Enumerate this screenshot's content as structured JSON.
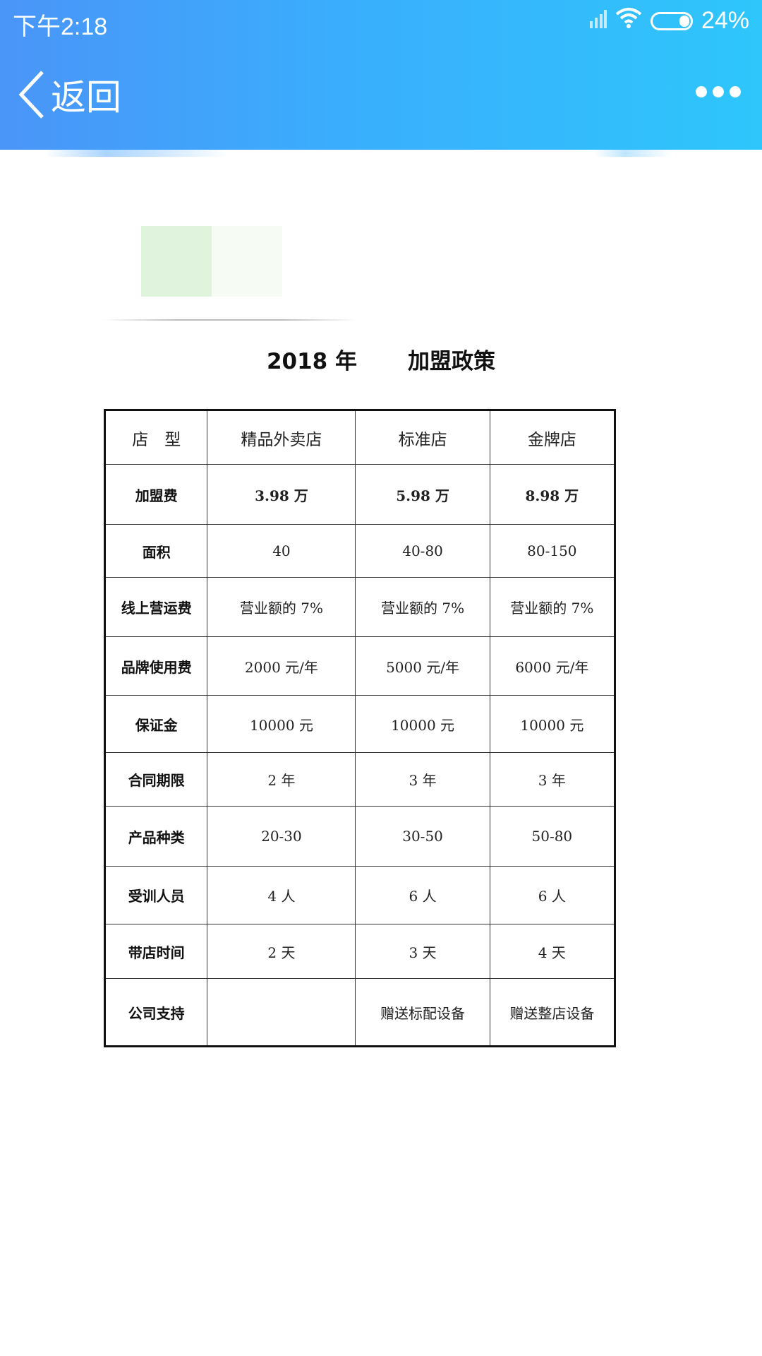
{
  "status_bar": {
    "time": "下午2:18",
    "battery": "24%"
  },
  "nav": {
    "back_label": "返回"
  },
  "document": {
    "title_year": "2018 年",
    "title_text": "加盟政策",
    "table": {
      "headers": [
        "店　型",
        "精品外卖店",
        "标准店",
        "金牌店"
      ],
      "rows": [
        [
          "加盟费",
          "3.98 万",
          "5.98 万",
          "8.98 万"
        ],
        [
          "面积",
          "40",
          "40-80",
          "80-150"
        ],
        [
          "线上营运费",
          "营业额的 7%",
          "营业额的 7%",
          "营业额的 7%"
        ],
        [
          "品牌使用费",
          "2000 元/年",
          "5000 元/年",
          "6000 元/年"
        ],
        [
          "保证金",
          "10000 元",
          "10000 元",
          "10000 元"
        ],
        [
          "合同期限",
          "2 年",
          "3 年",
          "3 年"
        ],
        [
          "产品种类",
          "20-30",
          "30-50",
          "50-80"
        ],
        [
          "受训人员",
          "4 人",
          "6 人",
          "6 人"
        ],
        [
          "带店时间",
          "2 天",
          "3 天",
          "4 天"
        ],
        [
          "公司支持",
          "",
          "赠送标配设备",
          "赠送整店设备"
        ]
      ]
    }
  }
}
